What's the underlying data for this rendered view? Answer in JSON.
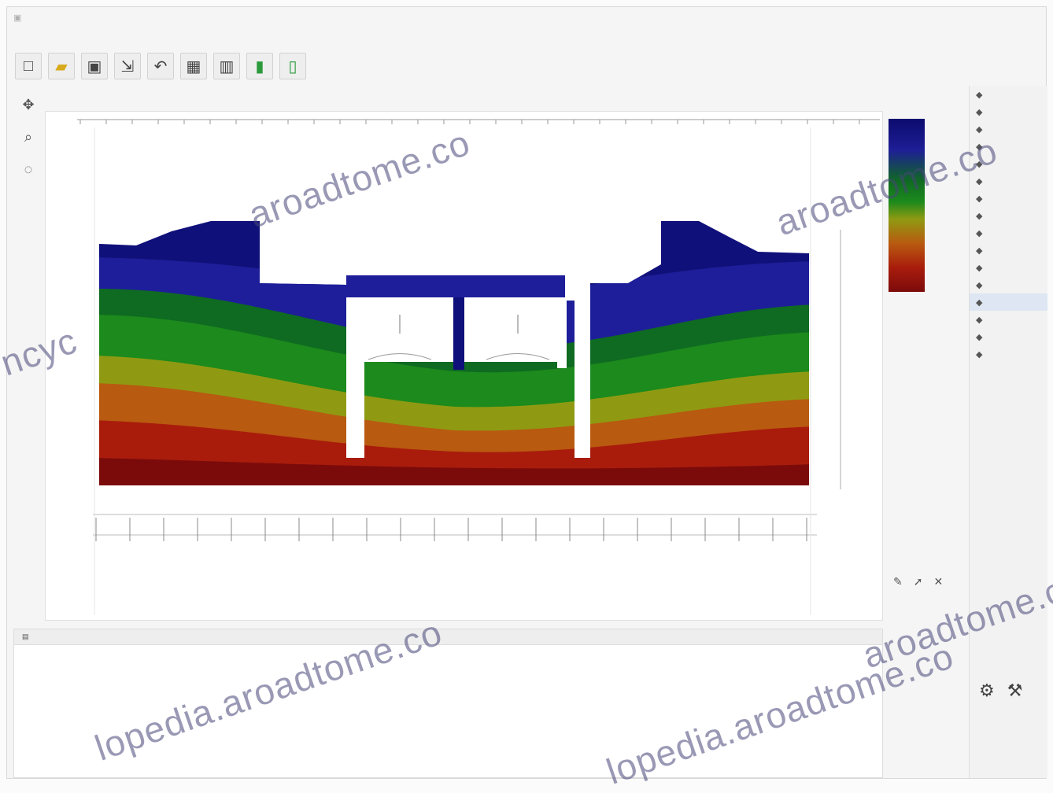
{
  "watermarks": [
    "aroadtome.co",
    "aroadtome.co",
    "ncyc",
    "aroadtome.co",
    "lopedia.aroadtome.co",
    "lopedia.aroadtome.co"
  ],
  "legend": {
    "values": [
      "",
      "",
      "",
      "",
      "",
      "",
      "",
      "",
      "",
      "",
      ""
    ]
  },
  "console": {
    "lines": [
      "",
      "",
      "",
      ""
    ]
  },
  "colors": {
    "blue_dark": "#10107a",
    "blue": "#1e1e9a",
    "green_dark": "#0f6a22",
    "green": "#1c8a1c",
    "olive": "#8f9a12",
    "orange": "#b85a10",
    "red": "#a91c0c",
    "red_dark": "#7b0b0b"
  }
}
